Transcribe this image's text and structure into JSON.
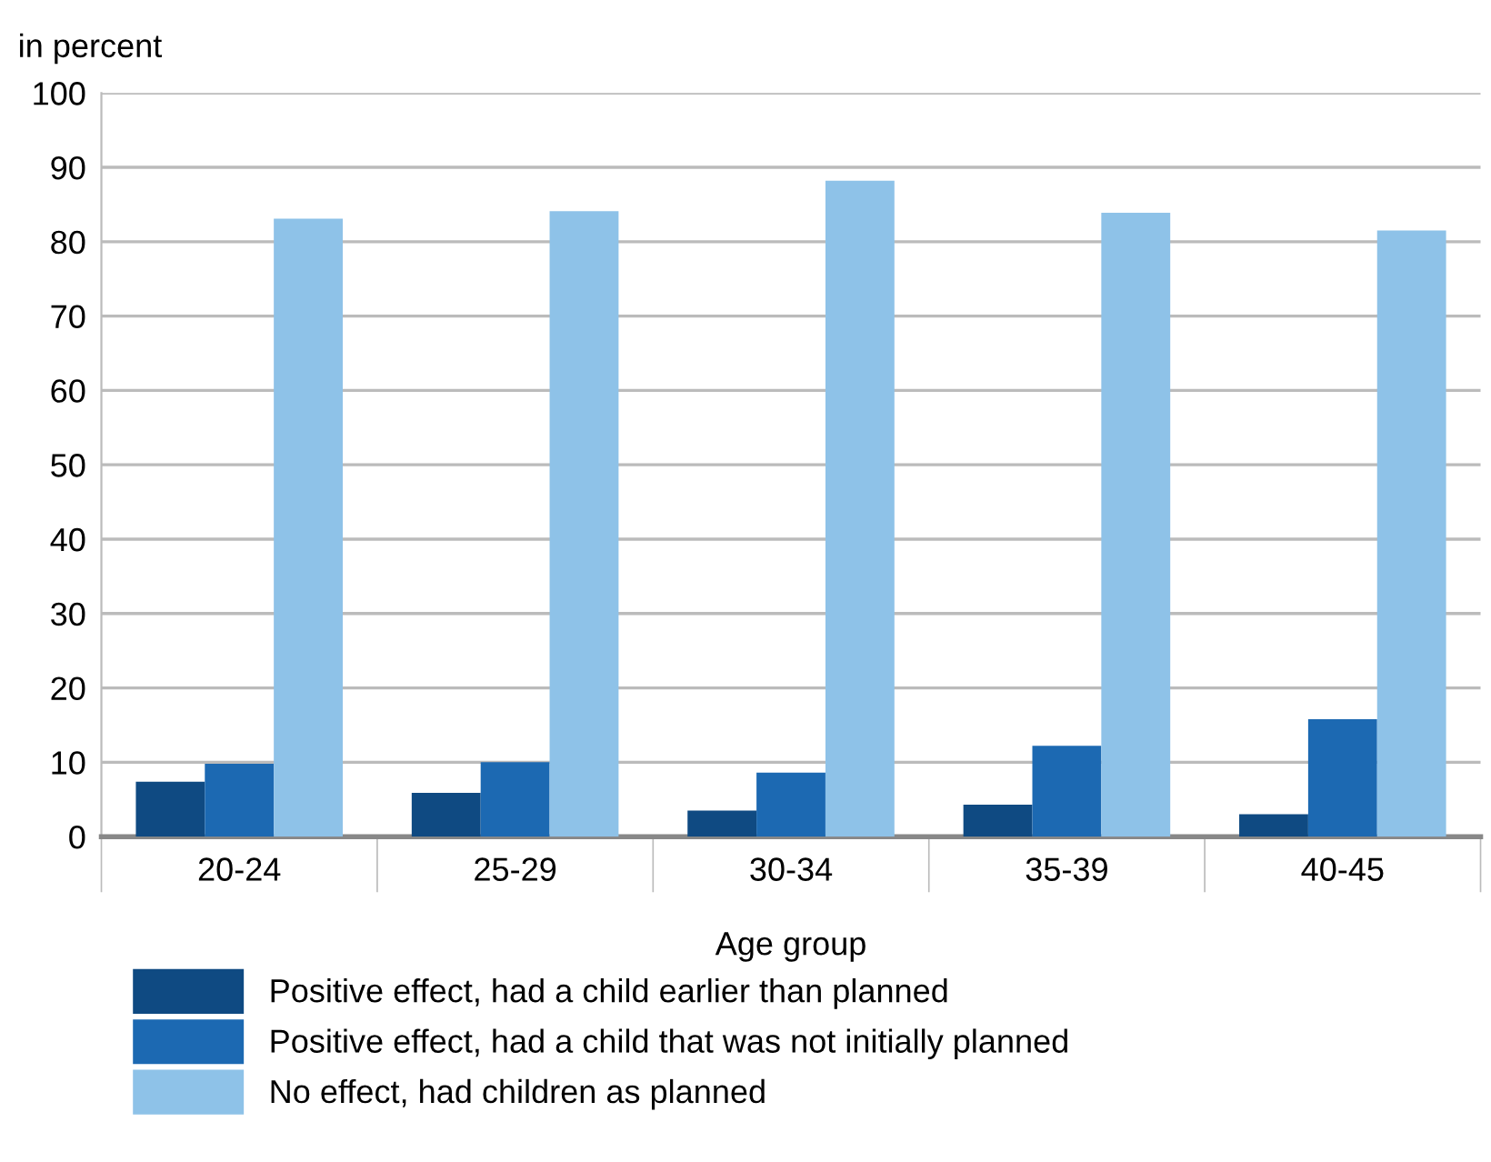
{
  "chart_data": {
    "type": "bar",
    "ylabel": "in percent",
    "xlabel": "Age group",
    "categories": [
      "20-24",
      "25-29",
      "30-34",
      "35-39",
      "40-45"
    ],
    "series": [
      {
        "name": "Positive effect, had a child earlier than planned",
        "color": "#0f4a82",
        "values": [
          7.4,
          5.9,
          3.5,
          4.3,
          3.0
        ]
      },
      {
        "name": "Positive effect, had a child that was not initially planned",
        "color": "#1c69b2",
        "values": [
          9.8,
          10.0,
          8.6,
          12.2,
          15.8
        ]
      },
      {
        "name": "No effect, had children as planned",
        "color": "#8ec2e8",
        "values": [
          83.1,
          84.1,
          88.2,
          83.9,
          81.5
        ]
      }
    ],
    "ylim": [
      0,
      100
    ],
    "yticks": [
      0,
      10,
      20,
      30,
      40,
      50,
      60,
      70,
      80,
      90,
      100
    ],
    "grid": "y",
    "legend": "bottom"
  }
}
